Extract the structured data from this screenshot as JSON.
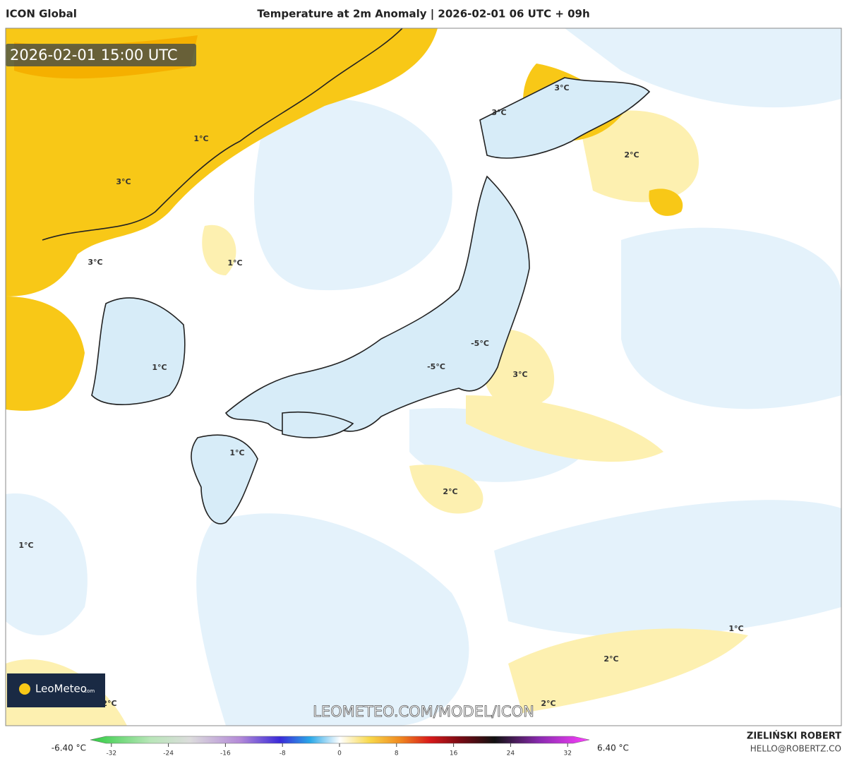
{
  "header": {
    "model": "ICON Global",
    "title": "Temperature at 2m Anomaly | 2026-02-01 06 UTC + 09h"
  },
  "timestamp": "2026-02-01 15:00 UTC",
  "map_labels": [
    "3°C",
    "3°C",
    "2°C",
    "1°C",
    "3°C",
    "1°C",
    "3°C",
    "-5°C",
    "-5°C",
    "3°C",
    "1°C",
    "1°C",
    "2°C",
    "1°C",
    "1°C",
    "2°C",
    "2°C",
    "2°C"
  ],
  "logo": {
    "name": "LeoMeteo",
    "suffix": ".com"
  },
  "watermark": "LEOMETEO.COM/MODEL/ICON",
  "colorbar": {
    "min_label": "-6.40 °C",
    "max_label": "6.40 °C",
    "ticks": [
      -32,
      -24,
      -16,
      -8,
      0,
      8,
      16,
      24,
      32
    ]
  },
  "author": {
    "name": "ZIELIŃSKI ROBERT",
    "email": "HELLO@ROBERTZ.CO"
  }
}
